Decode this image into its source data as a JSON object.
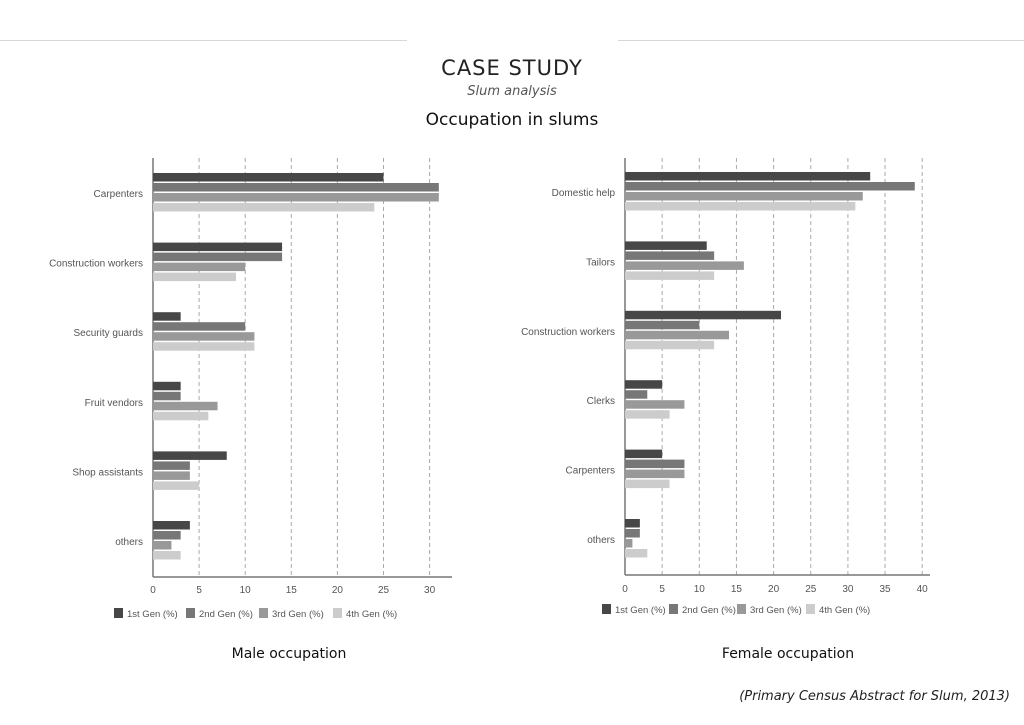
{
  "header": {
    "title": "CASE STUDY",
    "subtitle": "Slum analysis",
    "heading": "Occupation in slums"
  },
  "source": "(Primary Census Abstract for Slum, 2013)",
  "colors": [
    "#474747",
    "#777777",
    "#999999",
    "#cccccc"
  ],
  "chart_data": [
    {
      "type": "bar",
      "orientation": "horizontal",
      "caption": "Male occupation",
      "categories": [
        "Carpenters",
        "Construction workers",
        "Security guards",
        "Fruit vendors",
        "Shop assistants",
        "others"
      ],
      "series": [
        {
          "name": "1st Gen (%)",
          "values": [
            25,
            14,
            3,
            3,
            8,
            4
          ]
        },
        {
          "name": "2nd Gen (%)",
          "values": [
            31,
            14,
            10,
            3,
            4,
            3
          ]
        },
        {
          "name": "3rd Gen (%)",
          "values": [
            31,
            10,
            11,
            7,
            4,
            2
          ]
        },
        {
          "name": "4th Gen (%)",
          "values": [
            24,
            9,
            11,
            6,
            5,
            3
          ]
        }
      ],
      "xticks": [
        "0",
        "5",
        "10",
        "15",
        "20",
        "25",
        "30"
      ],
      "xlim": [
        0,
        32.5
      ],
      "grid": true,
      "legend": "bottom"
    },
    {
      "type": "bar",
      "orientation": "horizontal",
      "caption": "Female occupation",
      "categories": [
        "Domestic help",
        "Tailors",
        "Construction workers",
        "Clerks",
        "Carpenters",
        "others"
      ],
      "series": [
        {
          "name": "1st Gen (%)",
          "values": [
            33,
            11,
            21,
            5,
            5,
            2
          ]
        },
        {
          "name": "2nd Gen (%)",
          "values": [
            39,
            12,
            10,
            3,
            8,
            2
          ]
        },
        {
          "name": "3rd Gen (%)",
          "values": [
            32,
            16,
            14,
            8,
            8,
            1
          ]
        },
        {
          "name": "4th Gen (%)",
          "values": [
            31,
            12,
            12,
            6,
            6,
            3
          ]
        }
      ],
      "xticks": [
        "0",
        "5",
        "10",
        "15",
        "20",
        "25",
        "30",
        "35",
        "40"
      ],
      "xlim": [
        0,
        41
      ],
      "grid": true,
      "legend": "bottom"
    }
  ]
}
